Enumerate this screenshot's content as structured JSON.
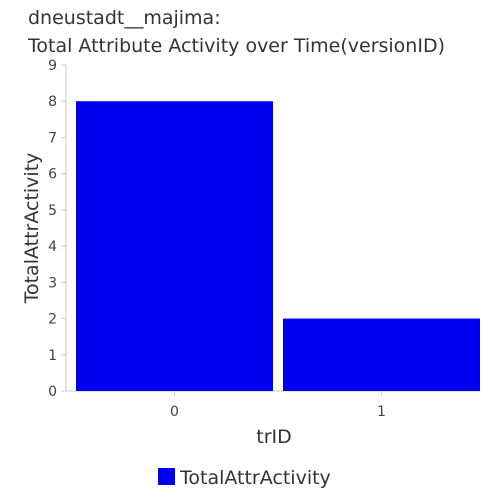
{
  "chart_data": {
    "type": "bar",
    "title_lines": [
      "dneustadt__majima:",
      "Total Attribute Activity over Time(versionID)"
    ],
    "categories": [
      "0",
      "1"
    ],
    "series": [
      {
        "name": "TotalAttrActivity",
        "values": [
          8,
          2
        ],
        "color": "#0000ee"
      }
    ],
    "xlabel": "trID",
    "ylabel": "TotalAttrActivity",
    "ylim": [
      0,
      9
    ],
    "yticks": [
      0,
      1,
      2,
      3,
      4,
      5,
      6,
      7,
      8,
      9
    ],
    "grid": false,
    "legend_position": "bottom-center"
  }
}
